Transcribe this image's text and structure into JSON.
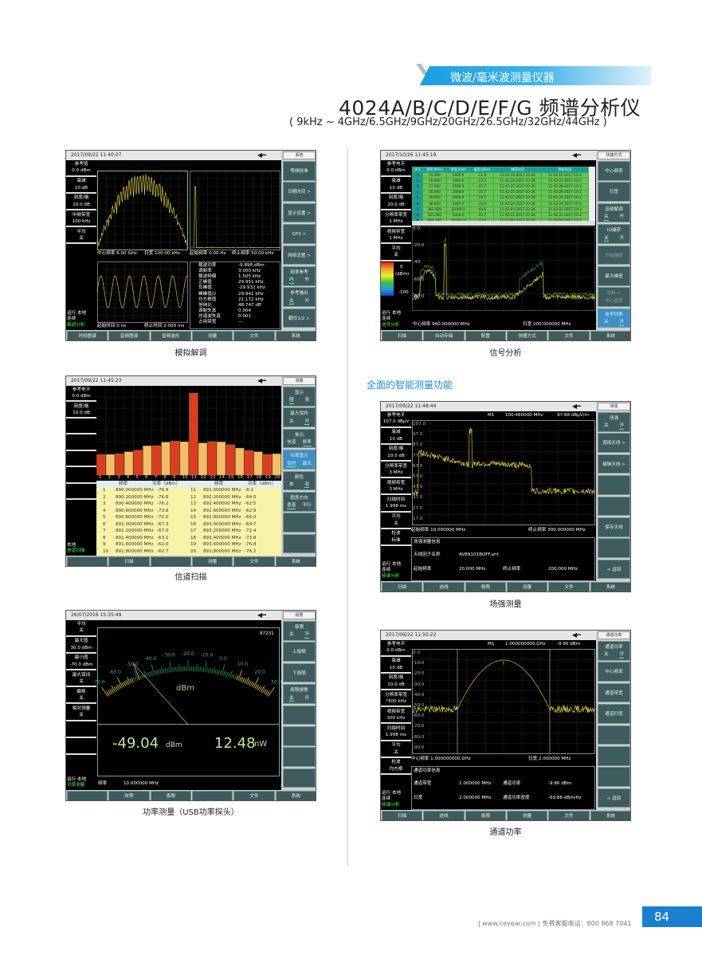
{
  "header": {
    "category": "微波/毫米波测量仪器",
    "title": "4024A/B/C/D/E/F/G 频谱分析仪",
    "subtitle": "( 9kHz ~ 4GHz/6.5GHz/9GHz/20GHz/26.5GHz/32GHz/44GHz )"
  },
  "section_heading": "全面的智能测量功能",
  "footer": {
    "text": "| www.ceyear.com | 免费客服电话：800 868 7041",
    "page_number": "84"
  },
  "colors": {
    "accent": "#1a8ed8",
    "softkey": "#3e5b5d",
    "trace": "#f0e030",
    "bar_red": "#e03a22",
    "bar_orange": "#f6bc66"
  },
  "plug_icon": "◀━",
  "screens": [
    {
      "caption": "模拟解调",
      "date": "2017/09/22  11:40:07",
      "mode": "系统",
      "left": [
        {
          "label": "参考值",
          "value": "0.0 dBm"
        },
        {
          "label": "衰减",
          "value": "10 dB"
        },
        {
          "label": "刻度/格",
          "value": "10.0 dB"
        },
        {
          "label": "中频带宽",
          "value": "100 kHz"
        },
        {
          "label": "平均",
          "value": "关"
        }
      ],
      "status": [
        "运行  本地",
        "连续"
      ],
      "status_mode": "解调分析",
      "softkeys": [
        {
          "label": "零频校准"
        },
        {
          "label": "日期时间 >"
        },
        {
          "label": "显示设置 >"
        },
        {
          "label": "GPS    >"
        },
        {
          "label": "网络设置 >"
        },
        {
          "label": "频率参考",
          "opts": [
            "内",
            "外"
          ],
          "on": 0
        },
        {
          "label": "参考输出",
          "opts": [
            "关",
            "开"
          ],
          "on": 0
        },
        {
          "label": "翻页1/2 >"
        }
      ],
      "tabs": [
        "时频图谱",
        "音频图谱",
        "音频波形",
        "测量",
        "文件",
        "系统"
      ],
      "panels": {
        "tl_left": "中心频率 6.00 GHz",
        "tl_right": "扫宽    100.00 kHz",
        "tr_left": "起始频率    0.00 Hz",
        "tr_right": "终止频率    50.00 kHz",
        "bl_left": "起始时间      0 ns",
        "bl_right": "终止时间    2.000 ms"
      },
      "measurements": [
        {
          "k": "载波功率",
          "v": "-9.898 dBm"
        },
        {
          "k": "调制率",
          "v": "3.000 kHz"
        },
        {
          "k": "载波频偏",
          "v": "1.505 kHz"
        },
        {
          "k": "正峰值",
          "v": "29.951 kHz"
        },
        {
          "k": "负峰值",
          "v": "-29.932 kHz"
        },
        {
          "k": "峰峰值/2",
          "v": "29.941 kHz"
        },
        {
          "k": "均方根值",
          "v": "21.172 kHz"
        },
        {
          "k": "信纳比",
          "v": "48.747 dB"
        },
        {
          "k": "调制失真",
          "v": "0.004"
        },
        {
          "k": "总谐波失真",
          "v": "0.001"
        },
        {
          "k": "占用带宽",
          "v": "---"
        }
      ]
    },
    {
      "caption": "信号分析",
      "date": "2017/10/26  11:45:19",
      "mode": "快捷方式",
      "left": [
        {
          "label": "参考电平",
          "value": "0.0 dBm"
        },
        {
          "label": "衰减",
          "value": "10 dB"
        },
        {
          "label": "刻度/格",
          "value": "20.0 dB"
        },
        {
          "label": "分辨率带宽",
          "value": "1 MHz"
        },
        {
          "label": "视频带宽",
          "value": "1 MHz"
        },
        {
          "label": "平均",
          "value": "关"
        }
      ],
      "colorbar": {
        "max": "0",
        "unit": "(dBm)",
        "min": "-100"
      },
      "status": [
        "运行  本地",
        "连续"
      ],
      "status_mode": "信号分析",
      "softkeys": [
        {
          "label": "中心频率"
        },
        {
          "label": "扫宽"
        },
        {
          "label": "音频解调",
          "opts": [
            "关",
            "开"
          ],
          "on": 0
        },
        {
          "label": "IQ捕获",
          "opts": [
            "关",
            "开"
          ],
          "on": 0
        },
        {
          "label": "开始捕获",
          "dim": true
        },
        {
          "label": "最大峰值"
        },
        {
          "label": "光标->",
          "opts": [
            "中心频率"
          ],
          "dim": true
        },
        {
          "label": "信号列表",
          "opts": [
            "关",
            "开"
          ],
          "on": 1,
          "hl": true
        }
      ],
      "tabs": [
        "扫描",
        "自动存储",
        "配置",
        "快捷方式",
        "文件",
        "系统"
      ],
      "table_headers": [
        "序号",
        "频率(MHz)",
        "带宽(kHz)",
        "幅度(dBm)",
        "捕获时间",
        "更新时间"
      ],
      "table_rows": [
        [
          "1",
          "25.000",
          "5000.0",
          "-21.8",
          "11-42-16-2017-10-26",
          "11-42-16-2017-10-2"
        ],
        [
          "2",
          "26.000",
          "2000.0",
          "-22.2",
          "11-42-24-2017-10-26",
          "11-42-27-2017-10-2"
        ],
        [
          "3",
          "27.000",
          "5000.0",
          "-21.7",
          "11-42-37-2017-10-26",
          "11-42-38-2017-10-2"
        ],
        [
          "4",
          "28.000",
          "2000.0",
          "-21.7",
          "11-42-25-2017-10-26",
          "11-42-26-2017-10-2"
        ],
        [
          "5",
          "30.000",
          "5000.0",
          "-24.2",
          "11-42-17-2017-10-26",
          "11-42-24-2017-10-2"
        ],
        [
          "6",
          "36.000",
          "2000.0",
          "-34.0",
          "11-42-24-2017-10-26",
          "11-42-24-2017-10-2"
        ],
        [
          "7",
          "361.800",
          "20100.0",
          "-44.6",
          "11-42-03-2017-10-26",
          "11-42-01-2017-10-2"
        ],
        [
          "8",
          "365.000",
          "5000.0",
          "-44.7",
          "11-42-11-2017-10-26",
          "11-42-21-2017-10-2"
        ],
        [
          "9",
          "864.300",
          "20100.0",
          "-12.6",
          "11-42-00-2017-10-26",
          "11-42-05-2017-10-2"
        ]
      ],
      "y_labels": [
        "0.0",
        "-20.0",
        "-40",
        "-60.0",
        "-80.0"
      ],
      "footer_left": "中心频率    960.000000 MHz",
      "footer_right": "扫宽    200.000000 MHz"
    },
    {
      "caption": "信道扫描",
      "date": "2017/09/22  11:45:23",
      "mode": "测量",
      "left": [
        {
          "label": "参考电平",
          "value": "0.0 dBm"
        },
        {
          "label": "刻度/格",
          "value": "10.0 dB"
        },
        {
          "label": "",
          "value": ""
        },
        {
          "label": "",
          "value": ""
        },
        {
          "label": "",
          "value": ""
        },
        {
          "label": "",
          "value": ""
        },
        {
          "label": "",
          "value": ""
        }
      ],
      "status": [
        "本地"
      ],
      "status_mode": "信道扫描",
      "softkeys": [
        {
          "label": "显示",
          "opts": [
            "图",
            "表"
          ],
          "on": 0
        },
        {
          "label": "最大保持",
          "opts": [
            "关",
            "开"
          ],
          "on": 1
        },
        {
          "label": "单元",
          "opts": [
            "信道",
            "频率"
          ],
          "on": 1
        },
        {
          "label": "功率显示",
          "opts": [
            "实时",
            "最大"
          ],
          "on": 0,
          "hl": true
        },
        {
          "label": "颜色",
          "opts": [
            "单",
            "双"
          ],
          "on": 1
        },
        {
          "label": "图表方向",
          "opts": [
            "垂直",
            "平行"
          ],
          "on": 0
        },
        {
          "label": ""
        },
        {
          "label": ""
        }
      ],
      "tabs": [
        "",
        "扫描",
        "",
        "测量",
        "文件",
        "系统"
      ],
      "table_headers": [
        "频率",
        "功率（dBm）",
        "频率",
        "功率（dBm）"
      ],
      "channels": [
        [
          "1",
          "890.000000 MHz",
          "-76.9"
        ],
        [
          "2",
          "890.200000 MHz",
          "-76.8"
        ],
        [
          "3",
          "890.400000 MHz",
          "-76.2"
        ],
        [
          "4",
          "890.600000 MHz",
          "-73.8"
        ],
        [
          "5",
          "890.800000 MHz",
          "-72.0"
        ],
        [
          "6",
          "891.000000 MHz",
          "-67.3"
        ],
        [
          "7",
          "891.200000 MHz",
          "-67.0"
        ],
        [
          "8",
          "891.400000 MHz",
          "-63.1"
        ],
        [
          "9",
          "891.600000 MHz",
          "-62.0"
        ],
        [
          "10",
          "891.800000 MHz",
          "-62.7"
        ],
        [
          "11",
          "892.000000 MHz",
          "-8.1"
        ],
        [
          "12",
          "892.200000 MHz",
          "-64.0"
        ],
        [
          "13",
          "892.400000 MHz",
          "-62.5"
        ],
        [
          "14",
          "892.600000 MHz",
          "-62.9"
        ],
        [
          "15",
          "892.800000 MHz",
          "-66.0"
        ],
        [
          "16",
          "893.000000 MHz",
          "-69.7"
        ],
        [
          "17",
          "893.200000 MHz",
          "-72.4"
        ],
        [
          "18",
          "893.400000 MHz",
          "-73.8"
        ],
        [
          "19",
          "893.600000 MHz",
          "-76.8"
        ],
        [
          "20",
          "893.800000 MHz",
          "-76.2"
        ]
      ]
    },
    {
      "caption": "场强测量",
      "date": "2017/09/22  11:48:44",
      "mode": "场强",
      "left": [
        {
          "label": "参考电平",
          "value": "107.0 dBμV"
        },
        {
          "label": "衰减",
          "value": "10 dB"
        },
        {
          "label": "刻度/格",
          "value": "10.0 dB"
        },
        {
          "label": "分辨率带宽",
          "value": "3 MHz"
        },
        {
          "label": "视频带宽",
          "value": "3 MHz"
        },
        {
          "label": "扫描时间",
          "value": "1.998 ms"
        },
        {
          "label": "平均",
          "value": "关"
        },
        {
          "label": "检波",
          "value": "标准"
        }
      ],
      "status": [
        "运行  本地",
        "连续"
      ],
      "status_mode": "频谱分析",
      "softkeys": [
        {
          "label": "场强",
          "opts": [
            "关",
            "开"
          ],
          "on": 1
        },
        {
          "label": "调用天线 >"
        },
        {
          "label": "编辑天线 >"
        },
        {
          "label": ""
        },
        {
          "label": ""
        },
        {
          "label": "保存天线"
        },
        {
          "label": ""
        },
        {
          "label": "<   返回"
        }
      ],
      "tabs": [
        "扫描",
        "迹线",
        "极限",
        "测量",
        "文件",
        "系统"
      ],
      "marker": {
        "name": "M1",
        "freq": "100.480000 MHz",
        "value": "97.88 dBμV/m"
      },
      "y_labels": [
        "107.0",
        "97.0",
        "87.0",
        "77.0",
        "67.0",
        "57.0",
        "47.0",
        "37.0",
        "27.0",
        "17.0"
      ],
      "footer_left": "起始频率    10.000000 MHz",
      "footer_right": "终止频率    300.000000 MHz",
      "info": {
        "title": "场强测量信息",
        "rows": [
          [
            "天线因子名称",
            "AV89101BOFF.ant",
            "",
            ""
          ],
          [
            "起始频率",
            "20.000 MHz",
            "终止频率",
            "200.000 MHz"
          ]
        ]
      }
    },
    {
      "caption": "功率测量（USB功率探头）",
      "date": "26/07/2016  15:35:49",
      "mode": "极限",
      "left": [
        {
          "label": "平均",
          "value": "关"
        },
        {
          "label": "最大值",
          "value": "30.0 dBm"
        },
        {
          "label": "最小值",
          "value": "-70.0 dBm"
        },
        {
          "label": "最大保持",
          "value": "关"
        },
        {
          "label": "偏移",
          "value": "关"
        },
        {
          "label": "相对测量",
          "value": "关"
        },
        {
          "label": "",
          "value": ""
        },
        {
          "label": "",
          "value": ""
        }
      ],
      "status": [
        "运行  本地"
      ],
      "status_mode": "功率测量",
      "softkeys": [
        {
          "label": "极限",
          "opts": [
            "关",
            "开"
          ],
          "on": 1
        },
        {
          "label": "上极限"
        },
        {
          "label": "下极限"
        },
        {
          "label": "极限报警",
          "opts": [
            "关",
            "开"
          ],
          "on": 0
        },
        {
          "label": ""
        },
        {
          "label": ""
        },
        {
          "label": ""
        },
        {
          "label": ""
        }
      ],
      "tabs": [
        "",
        "校零",
        "极限",
        "",
        "文件",
        "系统"
      ],
      "gauge": {
        "serial": "87231",
        "unit": "dBm",
        "scale": [
          "-70.0",
          "-60.0",
          "-50.0",
          "-40.0",
          "-30.0",
          "-20.0",
          "-10.0",
          "0.0",
          "10.0",
          "20.0",
          "30.0"
        ],
        "min": -70,
        "max": 30,
        "needle_dbm": -49.04
      },
      "reading": {
        "dbm": "-49.04",
        "dbm_unit": "dBm",
        "watt": "12.48",
        "watt_unit": "nW"
      },
      "freq_label": "频率",
      "freq_value": "10.000000 MHz"
    },
    {
      "caption": "通道功率",
      "date": "2017/09/22  11:50:22",
      "mode": "通道功率",
      "left": [
        {
          "label": "参考电平",
          "value": "0.0 dBm"
        },
        {
          "label": "衰减",
          "value": "10 dB"
        },
        {
          "label": "刻度/格",
          "value": "10.0 dB"
        },
        {
          "label": "分辨率带宽",
          "value": "*300 kHz"
        },
        {
          "label": "视频带宽",
          "value": "300 kHz"
        },
        {
          "label": "扫描时间",
          "value": "1.998 ms"
        },
        {
          "label": "平均",
          "value": "关"
        },
        {
          "label": "检波",
          "value": "均方根"
        }
      ],
      "status": [
        "运行  本地",
        "连续"
      ],
      "status_mode": "频谱分析",
      "softkeys": [
        {
          "label": "通道功率",
          "opts": [
            "关",
            "开"
          ],
          "on": 1
        },
        {
          "label": "中心频率"
        },
        {
          "label": "通道带宽"
        },
        {
          "label": "通道扫宽"
        },
        {
          "label": ""
        },
        {
          "label": ""
        },
        {
          "label": ""
        },
        {
          "label": "<   返回"
        }
      ],
      "tabs": [
        "扫描",
        "迹线",
        "极限",
        "测量",
        "文件",
        "系统"
      ],
      "marker": {
        "name": "M1",
        "freq": "1.000000000 GHz",
        "value": "-9.90 dBm"
      },
      "y_labels": [
        "0.0",
        "-10.0",
        "-20.0",
        "-30.0",
        "-40.0",
        "-50.0",
        "-60.0",
        "-70.0",
        "-80.0",
        "-90.0"
      ],
      "footer_left": "中心频率    1.000000000 GHz",
      "footer_right": "扫宽    2.000000 MHz",
      "info": {
        "title": "通道功率信息",
        "rows": [
          [
            "通道带宽",
            "1.000000 MHz",
            "通道功率",
            "-9.86 dBm"
          ],
          [
            "扫宽",
            "2.000000 MHz",
            "通道功率密度",
            "-69.86 dBm/Hz"
          ]
        ]
      }
    }
  ]
}
